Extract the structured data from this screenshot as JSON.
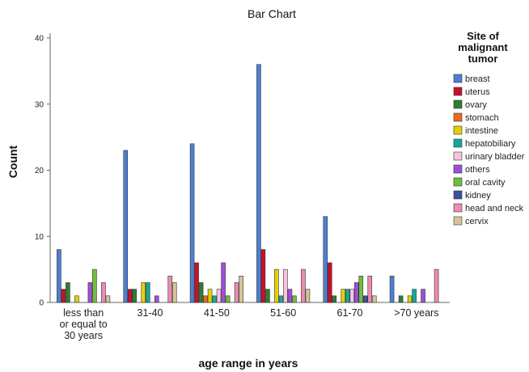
{
  "chart_data": {
    "type": "bar",
    "title": "Bar Chart",
    "xlabel": "age range in years",
    "ylabel": "Count",
    "ylim": [
      0,
      40
    ],
    "yticks": [
      0,
      10,
      20,
      30,
      40
    ],
    "grid": false,
    "legend_position": "right",
    "legend_title": [
      "Site of",
      "malignant",
      "tumor"
    ],
    "categories": [
      [
        "less than",
        "or equal to",
        "30 years"
      ],
      [
        "31-40"
      ],
      [
        "41-50"
      ],
      [
        "51-60"
      ],
      [
        "61-70"
      ],
      [
        ">70 years"
      ]
    ],
    "series": [
      {
        "name": "breast",
        "color": "#4e7fd0",
        "values": [
          8,
          23,
          24,
          36,
          13,
          4
        ]
      },
      {
        "name": "uterus",
        "color": "#c8102e",
        "values": [
          2,
          2,
          6,
          8,
          6,
          0
        ]
      },
      {
        "name": "ovary",
        "color": "#2e7d32",
        "values": [
          3,
          2,
          3,
          2,
          1,
          1
        ]
      },
      {
        "name": "stomach",
        "color": "#ee6a1e",
        "values": [
          0,
          0,
          1,
          0,
          0,
          0
        ]
      },
      {
        "name": "intestine",
        "color": "#e3d000",
        "values": [
          1,
          3,
          2,
          5,
          2,
          1
        ]
      },
      {
        "name": "hepatobiliary",
        "color": "#15a89a",
        "values": [
          0,
          3,
          1,
          1,
          2,
          2
        ]
      },
      {
        "name": "urinary bladder",
        "color": "#f6c4dc",
        "values": [
          0,
          0,
          2,
          5,
          2,
          0
        ]
      },
      {
        "name": "others",
        "color": "#9e4fd8",
        "values": [
          3,
          1,
          6,
          2,
          3,
          2
        ]
      },
      {
        "name": "oral cavity",
        "color": "#6ebf3c",
        "values": [
          5,
          0,
          1,
          1,
          4,
          0
        ]
      },
      {
        "name": "kidney",
        "color": "#3c4fa0",
        "values": [
          0,
          0,
          0,
          0,
          1,
          0
        ]
      },
      {
        "name": "head and neck",
        "color": "#ec8cb0",
        "values": [
          3,
          4,
          3,
          5,
          4,
          5
        ]
      },
      {
        "name": "cervix",
        "color": "#d2c59a",
        "values": [
          1,
          3,
          4,
          2,
          1,
          0
        ]
      }
    ]
  }
}
